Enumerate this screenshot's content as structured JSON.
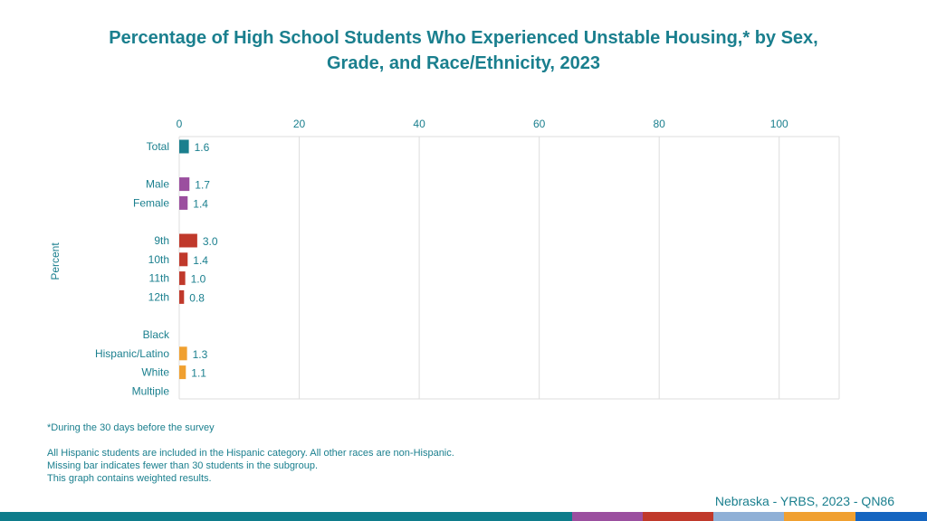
{
  "title_line1": "Percentage of High School Students Who Experienced Unstable Housing,* by Sex,",
  "title_line2": "Grade, and Race/Ethnicity, 2023",
  "notes": {
    "asterisk": "*During the 30 days before the survey",
    "hispanic": "All Hispanic students are included in the Hispanic category.  All other races are non-Hispanic.",
    "missing": "Missing bar indicates fewer than 30 students in the subgroup.",
    "weighted": "This graph contains weighted results."
  },
  "source": "Nebraska - YRBS, 2023 - QN86",
  "colors": {
    "text": "#1a7f8e",
    "grid": "#dddddd",
    "total": "#1a7f8e",
    "sex": "#9b4f9f",
    "grade": "#c0392b",
    "race": "#f0a030",
    "footer": [
      "#0e7c8b",
      "#9b4f9f",
      "#c0392b",
      "#8fb0d6",
      "#f0a030",
      "#1565c0"
    ]
  },
  "chart_data": {
    "type": "bar",
    "orientation": "horizontal",
    "ylabel": "Percent",
    "xlim": [
      0,
      110
    ],
    "xticks": [
      0,
      20,
      40,
      60,
      80,
      100
    ],
    "grid": true,
    "groups": [
      {
        "group": "total",
        "categories": [
          "Total"
        ],
        "values": [
          1.6
        ]
      },
      {
        "group": "sex",
        "categories": [
          "Male",
          "Female"
        ],
        "values": [
          1.7,
          1.4
        ]
      },
      {
        "group": "grade",
        "categories": [
          "9th",
          "10th",
          "11th",
          "12th"
        ],
        "values": [
          3.0,
          1.4,
          1.0,
          0.8
        ]
      },
      {
        "group": "race",
        "categories": [
          "Black",
          "Hispanic/Latino",
          "White",
          "Multiple"
        ],
        "values": [
          null,
          1.3,
          1.1,
          null
        ]
      }
    ]
  }
}
